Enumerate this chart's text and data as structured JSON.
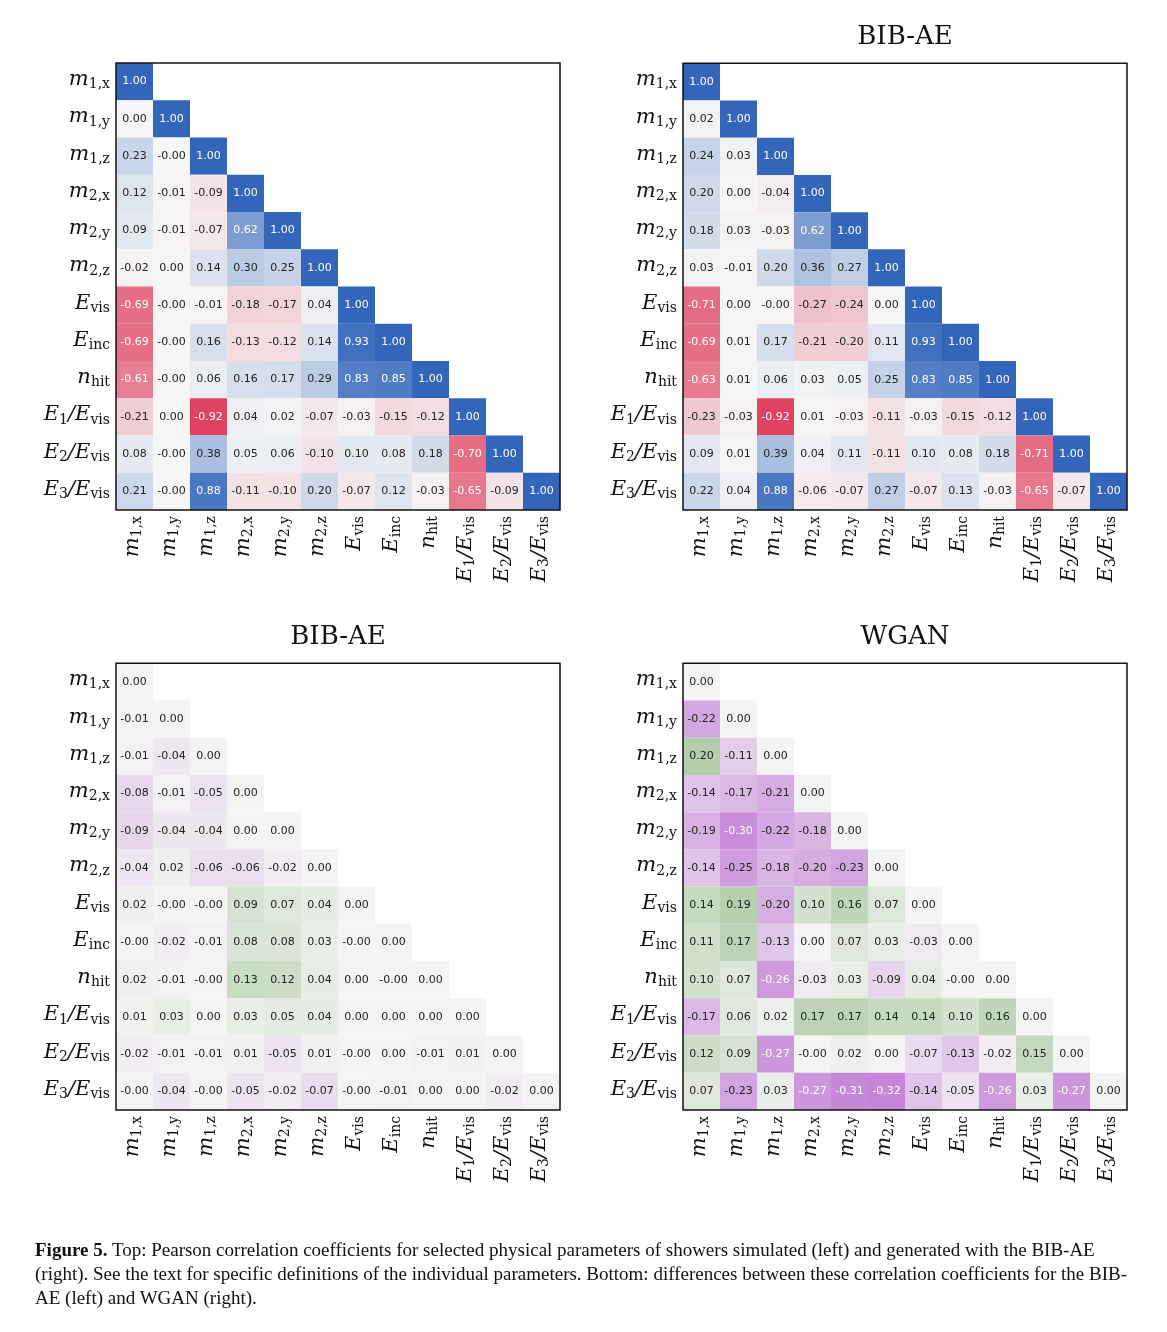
{
  "chart_data": [
    {
      "type": "heatmap",
      "categories": [
        "m$_{1,x}$",
        "m$_{1,y}$",
        "m$_{1,z}$",
        "m$_{2,x}$",
        "m$_{2,y}$",
        "m$_{2,z}$",
        "E$_{vis}$",
        "E$_{inc}$",
        "n$_{hit}$",
        "E$_{1}$/E$_{vis}$",
        "E$_{2}$/E$_{vis}$",
        "E$_{3}$/E$_{vis}$"
      ],
      "y_categories": [
        "m$_{1,x}$",
        "m$_{1,y}$",
        "m$_{1,z}$",
        "m$_{2,x}$",
        "m$_{2,y}$",
        "m$_{2,z}$",
        "E$_{vis}$",
        "E$_{inc}$",
        "n$_{hit}$",
        "E$_{1}$/E$_{vis}$",
        "E$_{2}$/E$_{vis}$",
        "E$_{3}$/E$_{vis}$"
      ],
      "cells": [
        [
          1.0,
          null,
          null,
          null,
          null,
          null,
          null,
          null,
          null,
          null,
          null,
          null
        ],
        [
          0.0,
          1.0,
          null,
          null,
          null,
          null,
          null,
          null,
          null,
          null,
          null,
          null
        ],
        [
          0.23,
          0,
          1.0,
          null,
          null,
          null,
          null,
          null,
          null,
          null,
          null,
          null
        ],
        [
          0.12,
          -0.01,
          -0.09,
          1.0,
          null,
          null,
          null,
          null,
          null,
          null,
          null,
          null
        ],
        [
          0.09,
          -0.01,
          -0.07,
          0.62,
          1.0,
          null,
          null,
          null,
          null,
          null,
          null,
          null
        ],
        [
          -0.02,
          0.0,
          0.14,
          0.3,
          0.25,
          1.0,
          null,
          null,
          null,
          null,
          null,
          null
        ],
        [
          -0.69,
          0,
          -0.01,
          -0.18,
          -0.17,
          0.04,
          1.0,
          null,
          null,
          null,
          null,
          null
        ],
        [
          -0.69,
          0,
          0.16,
          -0.13,
          -0.12,
          0.14,
          0.93,
          1.0,
          null,
          null,
          null,
          null
        ],
        [
          -0.61,
          0,
          0.06,
          0.16,
          0.17,
          0.29,
          0.83,
          0.85,
          1.0,
          null,
          null,
          null
        ],
        [
          -0.21,
          0.0,
          -0.92,
          0.04,
          0.02,
          -0.07,
          -0.03,
          -0.15,
          -0.12,
          1.0,
          null,
          null
        ],
        [
          0.08,
          0,
          0.38,
          0.05,
          0.06,
          -0.1,
          0.1,
          0.08,
          0.18,
          -0.7,
          1.0,
          null
        ],
        [
          0.21,
          0,
          0.88,
          -0.11,
          -0.1,
          0.2,
          -0.07,
          0.12,
          -0.03,
          -0.65,
          -0.09,
          1.0
        ]
      ],
      "cell_labels": [
        [
          "1.00",
          null,
          null,
          null,
          null,
          null,
          null,
          null,
          null,
          null,
          null,
          null
        ],
        [
          "0.00",
          "1.00",
          null,
          null,
          null,
          null,
          null,
          null,
          null,
          null,
          null,
          null
        ],
        [
          "0.23",
          "-0.00",
          "1.00",
          null,
          null,
          null,
          null,
          null,
          null,
          null,
          null,
          null
        ],
        [
          "0.12",
          "-0.01",
          "-0.09",
          "1.00",
          null,
          null,
          null,
          null,
          null,
          null,
          null,
          null
        ],
        [
          "0.09",
          "-0.01",
          "-0.07",
          "0.62",
          "1.00",
          null,
          null,
          null,
          null,
          null,
          null,
          null
        ],
        [
          "-0.02",
          "0.00",
          "0.14",
          "0.30",
          "0.25",
          "1.00",
          null,
          null,
          null,
          null,
          null,
          null
        ],
        [
          "-0.69",
          "-0.00",
          "-0.01",
          "-0.18",
          "-0.17",
          "0.04",
          "1.00",
          null,
          null,
          null,
          null,
          null
        ],
        [
          "-0.69",
          "-0.00",
          "0.16",
          "-0.13",
          "-0.12",
          "0.14",
          "0.93",
          "1.00",
          null,
          null,
          null,
          null
        ],
        [
          "-0.61",
          "-0.00",
          "0.06",
          "0.16",
          "0.17",
          "0.29",
          "0.83",
          "0.85",
          "1.00",
          null,
          null,
          null
        ],
        [
          "-0.21",
          "0.00",
          "-0.92",
          "0.04",
          "0.02",
          "-0.07",
          "-0.03",
          "-0.15",
          "-0.12",
          "1.00",
          null,
          null
        ],
        [
          "0.08",
          "-0.00",
          "0.38",
          "0.05",
          "0.06",
          "-0.10",
          "0.10",
          "0.08",
          "0.18",
          "-0.70",
          "1.00",
          null
        ],
        [
          "0.21",
          "-0.00",
          "0.88",
          "-0.11",
          "-0.10",
          "0.20",
          "-0.07",
          "0.12",
          "-0.03",
          "-0.65",
          "-0.09",
          "1.00"
        ]
      ],
      "annotations": [
        "Figure 5.",
        "Top: Pearson correlation coefficients for selected physical parameters of showers simulated (left) and generated with the BIB-AE (right). See the text for specific definitions of the individual parameters. Bottom: differences between these correlation coefficients for the BIB-AE (left) and WGAN (right)."
      ]
    },
    {
      "type": "heatmap",
      "title": "BIB-AE",
      "categories": [
        "m$_{1,x}$",
        "m$_{1,y}$",
        "m$_{1,z}$",
        "m$_{2,x}$",
        "m$_{2,y}$",
        "m$_{2,z}$",
        "E$_{vis}$",
        "E$_{inc}$",
        "n$_{hit}$",
        "E$_{1}$/E$_{vis}$",
        "E$_{2}$/E$_{vis}$",
        "E$_{3}$/E$_{vis}$"
      ],
      "y_categories": [
        "m$_{1,x}$",
        "m$_{1,y}$",
        "m$_{1,z}$",
        "m$_{2,x}$",
        "m$_{2,y}$",
        "m$_{2,z}$",
        "E$_{vis}$",
        "E$_{inc}$",
        "n$_{hit}$",
        "E$_{1}$/E$_{vis}$",
        "E$_{2}$/E$_{vis}$",
        "E$_{3}$/E$_{vis}$"
      ],
      "cells": [
        [
          1.0,
          null,
          null,
          null,
          null,
          null,
          null,
          null,
          null,
          null,
          null,
          null
        ],
        [
          0.02,
          1.0,
          null,
          null,
          null,
          null,
          null,
          null,
          null,
          null,
          null,
          null
        ],
        [
          0.24,
          0.03,
          1.0,
          null,
          null,
          null,
          null,
          null,
          null,
          null,
          null,
          null
        ],
        [
          0.2,
          0.0,
          -0.04,
          1.0,
          null,
          null,
          null,
          null,
          null,
          null,
          null,
          null
        ],
        [
          0.18,
          0.03,
          -0.03,
          0.62,
          1.0,
          null,
          null,
          null,
          null,
          null,
          null,
          null
        ],
        [
          0.03,
          -0.01,
          0.2,
          0.36,
          0.27,
          1.0,
          null,
          null,
          null,
          null,
          null,
          null
        ],
        [
          -0.71,
          0.0,
          0,
          -0.27,
          -0.24,
          0.0,
          1.0,
          null,
          null,
          null,
          null,
          null
        ],
        [
          -0.69,
          0.01,
          0.17,
          -0.21,
          -0.2,
          0.11,
          0.93,
          1.0,
          null,
          null,
          null,
          null
        ],
        [
          -0.63,
          0.01,
          0.06,
          0.03,
          0.05,
          0.25,
          0.83,
          0.85,
          1.0,
          null,
          null,
          null
        ],
        [
          -0.23,
          -0.03,
          -0.92,
          0.01,
          -0.03,
          -0.11,
          -0.03,
          -0.15,
          -0.12,
          1.0,
          null,
          null
        ],
        [
          0.09,
          0.01,
          0.39,
          0.04,
          0.11,
          -0.11,
          0.1,
          0.08,
          0.18,
          -0.71,
          1.0,
          null
        ],
        [
          0.22,
          0.04,
          0.88,
          -0.06,
          -0.07,
          0.27,
          -0.07,
          0.13,
          -0.03,
          -0.65,
          -0.07,
          1.0
        ]
      ],
      "cell_labels": [
        [
          "1.00",
          null,
          null,
          null,
          null,
          null,
          null,
          null,
          null,
          null,
          null,
          null
        ],
        [
          "0.02",
          "1.00",
          null,
          null,
          null,
          null,
          null,
          null,
          null,
          null,
          null,
          null
        ],
        [
          "0.24",
          "0.03",
          "1.00",
          null,
          null,
          null,
          null,
          null,
          null,
          null,
          null,
          null
        ],
        [
          "0.20",
          "0.00",
          "-0.04",
          "1.00",
          null,
          null,
          null,
          null,
          null,
          null,
          null,
          null
        ],
        [
          "0.18",
          "0.03",
          "-0.03",
          "0.62",
          "1.00",
          null,
          null,
          null,
          null,
          null,
          null,
          null
        ],
        [
          "0.03",
          "-0.01",
          "0.20",
          "0.36",
          "0.27",
          "1.00",
          null,
          null,
          null,
          null,
          null,
          null
        ],
        [
          "-0.71",
          "0.00",
          "-0.00",
          "-0.27",
          "-0.24",
          "0.00",
          "1.00",
          null,
          null,
          null,
          null,
          null
        ],
        [
          "-0.69",
          "0.01",
          "0.17",
          "-0.21",
          "-0.20",
          "0.11",
          "0.93",
          "1.00",
          null,
          null,
          null,
          null
        ],
        [
          "-0.63",
          "0.01",
          "0.06",
          "0.03",
          "0.05",
          "0.25",
          "0.83",
          "0.85",
          "1.00",
          null,
          null,
          null
        ],
        [
          "-0.23",
          "-0.03",
          "-0.92",
          "0.01",
          "-0.03",
          "-0.11",
          "-0.03",
          "-0.15",
          "-0.12",
          "1.00",
          null,
          null
        ],
        [
          "0.09",
          "0.01",
          "0.39",
          "0.04",
          "0.11",
          "-0.11",
          "0.10",
          "0.08",
          "0.18",
          "-0.71",
          "1.00",
          null
        ],
        [
          "0.22",
          "0.04",
          "0.88",
          "-0.06",
          "-0.07",
          "0.27",
          "-0.07",
          "0.13",
          "-0.03",
          "-0.65",
          "-0.07",
          "1.00"
        ]
      ]
    },
    {
      "type": "heatmap",
      "title": "BIB-AE",
      "categories": [
        "m$_{1,x}$",
        "m$_{1,y}$",
        "m$_{1,z}$",
        "m$_{2,x}$",
        "m$_{2,y}$",
        "m$_{2,z}$",
        "E$_{vis}$",
        "E$_{inc}$",
        "n$_{hit}$",
        "E$_{1}$/E$_{vis}$",
        "E$_{2}$/E$_{vis}$",
        "E$_{3}$/E$_{vis}$"
      ],
      "y_categories": [
        "m$_{1,x}$",
        "m$_{1,y}$",
        "m$_{1,z}$",
        "m$_{2,x}$",
        "m$_{2,y}$",
        "m$_{2,z}$",
        "E$_{vis}$",
        "E$_{inc}$",
        "n$_{hit}$",
        "E$_{1}$/E$_{vis}$",
        "E$_{2}$/E$_{vis}$",
        "E$_{3}$/E$_{vis}$"
      ],
      "cells": [
        [
          0.0,
          null,
          null,
          null,
          null,
          null,
          null,
          null,
          null,
          null,
          null,
          null
        ],
        [
          -0.01,
          0.0,
          null,
          null,
          null,
          null,
          null,
          null,
          null,
          null,
          null,
          null
        ],
        [
          -0.01,
          -0.04,
          0.0,
          null,
          null,
          null,
          null,
          null,
          null,
          null,
          null,
          null
        ],
        [
          -0.08,
          -0.01,
          -0.05,
          0.0,
          null,
          null,
          null,
          null,
          null,
          null,
          null,
          null
        ],
        [
          -0.09,
          -0.04,
          -0.04,
          0.0,
          0.0,
          null,
          null,
          null,
          null,
          null,
          null,
          null
        ],
        [
          -0.04,
          0.02,
          -0.06,
          -0.06,
          -0.02,
          0.0,
          null,
          null,
          null,
          null,
          null,
          null
        ],
        [
          0.02,
          0,
          0,
          0.09,
          0.07,
          0.04,
          0.0,
          null,
          null,
          null,
          null,
          null
        ],
        [
          0,
          -0.02,
          -0.01,
          0.08,
          0.08,
          0.03,
          0,
          0.0,
          null,
          null,
          null,
          null
        ],
        [
          0.02,
          -0.01,
          0,
          0.13,
          0.12,
          0.04,
          0.0,
          0,
          0.0,
          null,
          null,
          null
        ],
        [
          0.01,
          0.03,
          0.0,
          0.03,
          0.05,
          0.04,
          0.0,
          0.0,
          0.0,
          0.0,
          null,
          null
        ],
        [
          -0.02,
          -0.01,
          -0.01,
          0.01,
          -0.05,
          0.01,
          0,
          0.0,
          -0.01,
          0.01,
          0.0,
          null
        ],
        [
          0,
          -0.04,
          0,
          -0.05,
          -0.02,
          -0.07,
          0,
          -0.01,
          0.0,
          0.0,
          -0.02,
          0.0
        ]
      ],
      "cell_labels": [
        [
          "0.00",
          null,
          null,
          null,
          null,
          null,
          null,
          null,
          null,
          null,
          null,
          null
        ],
        [
          "-0.01",
          "0.00",
          null,
          null,
          null,
          null,
          null,
          null,
          null,
          null,
          null,
          null
        ],
        [
          "-0.01",
          "-0.04",
          "0.00",
          null,
          null,
          null,
          null,
          null,
          null,
          null,
          null,
          null
        ],
        [
          "-0.08",
          "-0.01",
          "-0.05",
          "0.00",
          null,
          null,
          null,
          null,
          null,
          null,
          null,
          null
        ],
        [
          "-0.09",
          "-0.04",
          "-0.04",
          "0.00",
          "0.00",
          null,
          null,
          null,
          null,
          null,
          null,
          null
        ],
        [
          "-0.04",
          "0.02",
          "-0.06",
          "-0.06",
          "-0.02",
          "0.00",
          null,
          null,
          null,
          null,
          null,
          null
        ],
        [
          "0.02",
          "-0.00",
          "-0.00",
          "0.09",
          "0.07",
          "0.04",
          "0.00",
          null,
          null,
          null,
          null,
          null
        ],
        [
          "-0.00",
          "-0.02",
          "-0.01",
          "0.08",
          "0.08",
          "0.03",
          "-0.00",
          "0.00",
          null,
          null,
          null,
          null
        ],
        [
          "0.02",
          "-0.01",
          "-0.00",
          "0.13",
          "0.12",
          "0.04",
          "0.00",
          "-0.00",
          "0.00",
          null,
          null,
          null
        ],
        [
          "0.01",
          "0.03",
          "0.00",
          "0.03",
          "0.05",
          "0.04",
          "0.00",
          "0.00",
          "0.00",
          "0.00",
          null,
          null
        ],
        [
          "-0.02",
          "-0.01",
          "-0.01",
          "0.01",
          "-0.05",
          "0.01",
          "-0.00",
          "0.00",
          "-0.01",
          "0.01",
          "0.00",
          null
        ],
        [
          "-0.00",
          "-0.04",
          "-0.00",
          "-0.05",
          "-0.02",
          "-0.07",
          "-0.00",
          "-0.01",
          "0.00",
          "0.00",
          "-0.02",
          "0.00"
        ]
      ]
    },
    {
      "type": "heatmap",
      "title": "WGAN",
      "categories": [
        "m$_{1,x}$",
        "m$_{1,y}$",
        "m$_{1,z}$",
        "m$_{2,x}$",
        "m$_{2,y}$",
        "m$_{2,z}$",
        "E$_{vis}$",
        "E$_{inc}$",
        "n$_{hit}$",
        "E$_{1}$/E$_{vis}$",
        "E$_{2}$/E$_{vis}$",
        "E$_{3}$/E$_{vis}$"
      ],
      "y_categories": [
        "m$_{1,x}$",
        "m$_{1,y}$",
        "m$_{1,z}$",
        "m$_{2,x}$",
        "m$_{2,y}$",
        "m$_{2,z}$",
        "E$_{vis}$",
        "E$_{inc}$",
        "n$_{hit}$",
        "E$_{1}$/E$_{vis}$",
        "E$_{2}$/E$_{vis}$",
        "E$_{3}$/E$_{vis}$"
      ],
      "cells": [
        [
          0.0,
          null,
          null,
          null,
          null,
          null,
          null,
          null,
          null,
          null,
          null,
          null
        ],
        [
          -0.22,
          0.0,
          null,
          null,
          null,
          null,
          null,
          null,
          null,
          null,
          null,
          null
        ],
        [
          0.2,
          -0.11,
          0.0,
          null,
          null,
          null,
          null,
          null,
          null,
          null,
          null,
          null
        ],
        [
          -0.14,
          -0.17,
          -0.21,
          0.0,
          null,
          null,
          null,
          null,
          null,
          null,
          null,
          null
        ],
        [
          -0.19,
          -0.3,
          -0.22,
          -0.18,
          0.0,
          null,
          null,
          null,
          null,
          null,
          null,
          null
        ],
        [
          -0.14,
          -0.25,
          -0.18,
          -0.2,
          -0.23,
          0.0,
          null,
          null,
          null,
          null,
          null,
          null
        ],
        [
          0.14,
          0.19,
          -0.2,
          0.1,
          0.16,
          0.07,
          0.0,
          null,
          null,
          null,
          null,
          null
        ],
        [
          0.11,
          0.17,
          -0.13,
          0.0,
          0.07,
          0.03,
          -0.03,
          0.0,
          null,
          null,
          null,
          null
        ],
        [
          0.1,
          0.07,
          -0.26,
          -0.03,
          0.03,
          -0.09,
          0.04,
          0,
          0.0,
          null,
          null,
          null
        ],
        [
          -0.17,
          0.06,
          0.02,
          0.17,
          0.17,
          0.14,
          0.14,
          0.1,
          0.16,
          0.0,
          null,
          null
        ],
        [
          0.12,
          0.09,
          -0.27,
          0,
          0.02,
          0.0,
          -0.07,
          -0.13,
          -0.02,
          0.15,
          0.0,
          null
        ],
        [
          0.07,
          -0.23,
          0.03,
          -0.27,
          -0.31,
          -0.32,
          -0.14,
          -0.05,
          -0.26,
          0.03,
          -0.27,
          0.0
        ]
      ],
      "cell_labels": [
        [
          "0.00",
          null,
          null,
          null,
          null,
          null,
          null,
          null,
          null,
          null,
          null,
          null
        ],
        [
          "-0.22",
          "0.00",
          null,
          null,
          null,
          null,
          null,
          null,
          null,
          null,
          null,
          null
        ],
        [
          "0.20",
          "-0.11",
          "0.00",
          null,
          null,
          null,
          null,
          null,
          null,
          null,
          null,
          null
        ],
        [
          "-0.14",
          "-0.17",
          "-0.21",
          "0.00",
          null,
          null,
          null,
          null,
          null,
          null,
          null,
          null
        ],
        [
          "-0.19",
          "-0.30",
          "-0.22",
          "-0.18",
          "0.00",
          null,
          null,
          null,
          null,
          null,
          null,
          null
        ],
        [
          "-0.14",
          "-0.25",
          "-0.18",
          "-0.20",
          "-0.23",
          "0.00",
          null,
          null,
          null,
          null,
          null,
          null
        ],
        [
          "0.14",
          "0.19",
          "-0.20",
          "0.10",
          "0.16",
          "0.07",
          "0.00",
          null,
          null,
          null,
          null,
          null
        ],
        [
          "0.11",
          "0.17",
          "-0.13",
          "0.00",
          "0.07",
          "0.03",
          "-0.03",
          "0.00",
          null,
          null,
          null,
          null
        ],
        [
          "0.10",
          "0.07",
          "-0.26",
          "-0.03",
          "0.03",
          "-0.09",
          "0.04",
          "-0.00",
          "0.00",
          null,
          null,
          null
        ],
        [
          "-0.17",
          "0.06",
          "0.02",
          "0.17",
          "0.17",
          "0.14",
          "0.14",
          "0.10",
          "0.16",
          "0.00",
          null,
          null
        ],
        [
          "0.12",
          "0.09",
          "-0.27",
          "-0.00",
          "0.02",
          "0.00",
          "-0.07",
          "-0.13",
          "-0.02",
          "0.15",
          "0.00",
          null
        ],
        [
          "0.07",
          "-0.23",
          "0.03",
          "-0.27",
          "-0.31",
          "-0.32",
          "-0.14",
          "-0.05",
          "-0.26",
          "0.03",
          "-0.27",
          "0.00"
        ]
      ]
    }
  ]
}
